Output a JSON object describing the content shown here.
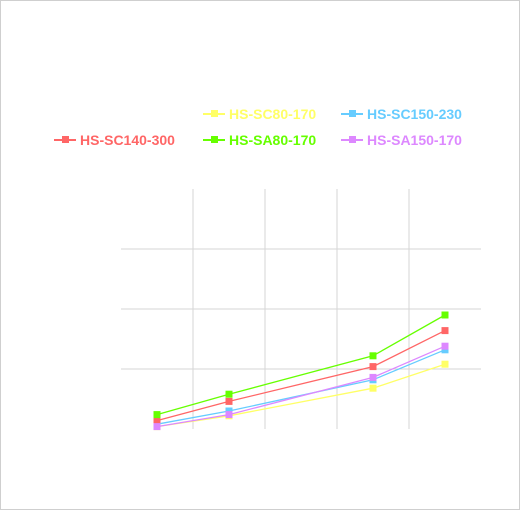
{
  "chart_data": {
    "type": "line",
    "title": "",
    "xlabel": "",
    "ylabel": "",
    "x_categories": [
      "",
      "",
      "",
      "",
      "",
      ""
    ],
    "grid": true,
    "legend_position": "top",
    "series": [
      {
        "name": "HS-SC80-170",
        "color": "#ffff66",
        "values": [
          0.2,
          1.1,
          3.4,
          5.4
        ]
      },
      {
        "name": "HS-SC150-230",
        "color": "#66ccff",
        "values": [
          0.4,
          1.5,
          4.1,
          6.6
        ]
      },
      {
        "name": "HS-SC140-300",
        "color": "#ff6666",
        "values": [
          0.7,
          2.3,
          5.2,
          8.2
        ]
      },
      {
        "name": "HS-SA80-170",
        "color": "#66ff00",
        "values": [
          1.2,
          2.9,
          6.1,
          9.5
        ]
      },
      {
        "name": "HS-SA150-170",
        "color": "#dd88ff",
        "values": [
          0.2,
          1.2,
          4.3,
          6.9
        ]
      }
    ],
    "x_positions": [
      0.5,
      1.5,
      3.5,
      4.5
    ],
    "xlim": [
      0,
      5
    ],
    "ylim": [
      0,
      20
    ],
    "ytick_step": 5
  }
}
